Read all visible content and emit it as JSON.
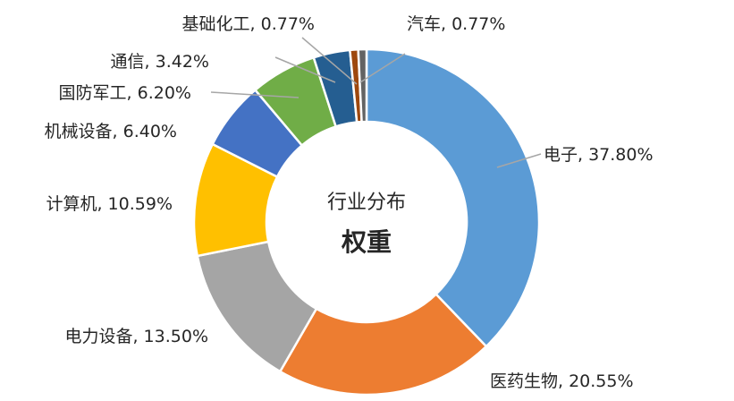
{
  "chart_data": {
    "type": "pie",
    "title": "",
    "center_label": [
      "行业分布",
      "权重"
    ],
    "slices": [
      {
        "name": "电子",
        "value": 37.8,
        "label": "电子, 37.80%",
        "color": "#5b9bd5"
      },
      {
        "name": "医药生物",
        "value": 20.55,
        "label": "医药生物, 20.55%",
        "color": "#ed7d31"
      },
      {
        "name": "电力设备",
        "value": 13.5,
        "label": "电力设备, 13.50%",
        "color": "#a5a5a5"
      },
      {
        "name": "计算机",
        "value": 10.59,
        "label": "计算机, 10.59%",
        "color": "#ffc000"
      },
      {
        "name": "机械设备",
        "value": 6.4,
        "label": "机械设备, 6.40%",
        "color": "#4472c4"
      },
      {
        "name": "国防军工",
        "value": 6.2,
        "label": "国防军工, 6.20%",
        "color": "#70ad47"
      },
      {
        "name": "通信",
        "value": 3.42,
        "label": "通信, 3.42%",
        "color": "#255e91"
      },
      {
        "name": "基础化工",
        "value": 0.77,
        "label": "基础化工, 0.77%",
        "color": "#9e480e"
      },
      {
        "name": "汽车",
        "value": 0.77,
        "label": "汽车, 0.77%",
        "color": "#636363"
      }
    ]
  }
}
